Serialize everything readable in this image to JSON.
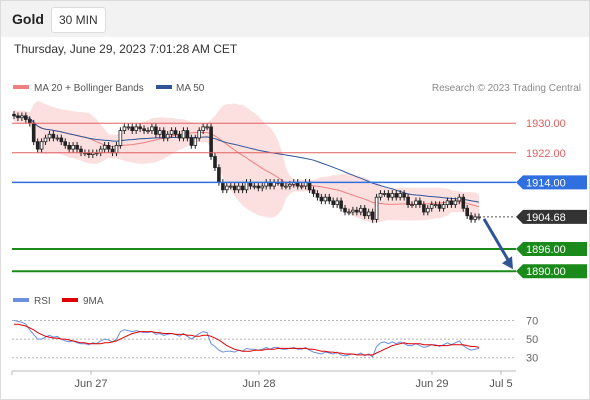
{
  "header": {
    "instrument": "Gold",
    "timeframe": "30 MIN"
  },
  "timestamp": "Thursday, June 29, 2023 7:01:28 AM CET",
  "legend": {
    "price": [
      {
        "label": "MA 20 + Bollinger Bands",
        "color": "#f08080"
      },
      {
        "label": "MA 50",
        "color": "#2f5597"
      }
    ],
    "rsi": [
      {
        "label": "RSI",
        "color": "#6b8fe0"
      },
      {
        "label": "9MA",
        "color": "#e00000"
      }
    ]
  },
  "copyright": "Research © 2023 Trading Central",
  "chart_data": [
    {
      "type": "candlestick",
      "name": "price",
      "ylim": [
        1886,
        1936
      ],
      "x_labels": [
        "Jun 27",
        "Jun 28",
        "Jun 29",
        "Jul 5"
      ],
      "levels": [
        {
          "label": "1930.00",
          "value": 1930.0,
          "style": "resistance",
          "color": "#e06060"
        },
        {
          "label": "1922.00",
          "value": 1922.0,
          "style": "resistance",
          "color": "#e06060"
        },
        {
          "label": "1914.00",
          "value": 1914.0,
          "style": "pivot",
          "color": "#2f6fe0"
        },
        {
          "label": "1904.68",
          "value": 1904.68,
          "style": "last",
          "color": "#333333"
        },
        {
          "label": "1896.00",
          "value": 1896.0,
          "style": "support",
          "color": "#1a8a1a"
        },
        {
          "label": "1890.00",
          "value": 1890.0,
          "style": "support",
          "color": "#1a8a1a"
        }
      ],
      "forecast": {
        "from": 1904.68,
        "to": 1890.0,
        "color": "#2f5597"
      },
      "close": [
        1932,
        1931.5,
        1932,
        1931,
        1930,
        1925,
        1923,
        1925,
        1926,
        1927,
        1926,
        1926,
        1925,
        1924,
        1923,
        1924,
        1923,
        1922,
        1922,
        1921.5,
        1922,
        1922,
        1923,
        1924,
        1923,
        1922,
        1924,
        1928,
        1929,
        1929,
        1928,
        1929,
        1928.5,
        1928,
        1928,
        1929,
        1927,
        1928,
        1926,
        1927,
        1928,
        1927,
        1926,
        1928,
        1926,
        1924,
        1926,
        1928,
        1929,
        1929,
        1921,
        1918,
        1914,
        1912,
        1913,
        1913,
        1912,
        1913,
        1912,
        1914,
        1913,
        1913,
        1912.5,
        1913,
        1914,
        1913,
        1914,
        1914,
        1913,
        1913,
        1913.5,
        1914,
        1913,
        1913,
        1914,
        1912,
        1911,
        1910,
        1909,
        1910,
        1909,
        1908,
        1909,
        1907,
        1906,
        1906,
        1906.5,
        1906,
        1907,
        1905,
        1906,
        1904,
        1910,
        1911,
        1911,
        1910,
        1911,
        1910,
        1911,
        1910,
        1908,
        1908,
        1909,
        1908,
        1906,
        1907,
        1908,
        1908,
        1907,
        1908,
        1909,
        1908,
        1909,
        1910,
        1907,
        1905,
        1904,
        1904.68,
        1904.68
      ],
      "rsi": [
        70,
        69,
        68,
        66,
        60,
        55,
        50,
        50,
        52,
        54,
        52,
        53,
        50,
        48,
        47,
        48,
        46,
        45,
        45,
        44,
        46,
        45,
        48,
        50,
        49,
        47,
        50,
        58,
        60,
        59,
        58,
        59,
        58,
        57,
        57,
        58,
        55,
        56,
        54,
        55,
        56,
        55,
        53,
        56,
        53,
        50,
        53,
        56,
        58,
        57,
        45,
        42,
        38,
        36,
        37,
        37,
        36,
        38,
        37,
        40,
        39,
        39,
        38,
        39,
        41,
        39,
        41,
        41,
        39,
        39,
        40,
        41,
        39,
        39,
        41,
        38,
        36,
        35,
        34,
        36,
        35,
        34,
        36,
        33,
        32,
        33,
        34,
        33,
        35,
        32,
        34,
        31,
        42,
        46,
        47,
        45,
        47,
        45,
        47,
        45,
        43,
        43,
        45,
        43,
        41,
        42,
        44,
        44,
        42,
        44,
        46,
        44,
        46,
        48,
        43,
        40,
        38,
        39,
        40
      ],
      "rsi_ma": [
        66,
        66,
        65,
        64,
        62,
        60,
        57,
        55,
        53,
        52,
        51,
        51,
        50,
        50,
        49,
        48,
        47,
        46,
        46,
        45,
        45,
        45,
        45,
        46,
        46,
        47,
        48,
        50,
        52,
        54,
        56,
        57,
        58,
        58,
        58,
        58,
        57,
        57,
        56,
        56,
        56,
        55,
        55,
        55,
        54,
        54,
        53,
        53,
        54,
        54,
        53,
        51,
        49,
        46,
        43,
        41,
        39,
        38,
        37,
        37,
        37,
        38,
        38,
        38,
        39,
        39,
        39,
        40,
        40,
        40,
        40,
        40,
        40,
        40,
        40,
        39,
        39,
        38,
        37,
        37,
        36,
        36,
        35,
        35,
        34,
        34,
        34,
        33,
        33,
        33,
        33,
        33,
        35,
        37,
        39,
        41,
        43,
        44,
        45,
        46,
        45,
        45,
        45,
        45,
        44,
        44,
        44,
        43,
        43,
        43,
        43,
        44,
        44,
        44,
        44,
        43,
        42,
        42,
        41
      ],
      "rsi_ylim": [
        20,
        78
      ],
      "rsi_ticks": [
        70,
        50,
        30
      ]
    }
  ]
}
